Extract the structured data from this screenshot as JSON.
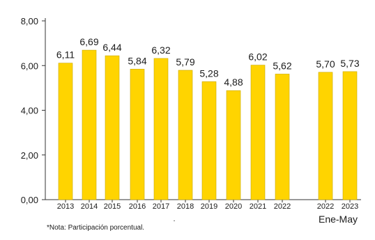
{
  "chart_data": {
    "type": "bar",
    "title": "",
    "xlabel": "",
    "ylabel": "",
    "ylim": [
      0,
      8
    ],
    "yticks": [
      "0,00",
      "2,00",
      "4,00",
      "6,00",
      "8,00"
    ],
    "grid": false,
    "legend": "none",
    "bar_color": "#FFD400",
    "bar_stroke": "#C9A800",
    "categories": [
      "2013",
      "2014",
      "2015",
      "2016",
      "2017",
      "2018",
      "2019",
      "2020",
      "2021",
      "2022",
      "2022",
      "2023"
    ],
    "values": [
      6.11,
      6.69,
      6.44,
      5.84,
      6.32,
      5.79,
      5.28,
      4.88,
      6.02,
      5.62,
      5.7,
      5.73
    ],
    "data_labels": [
      "6,11",
      "6,69",
      "6,44",
      "5,84",
      "6,32",
      "5,79",
      "5,28",
      "4,88",
      "6,02",
      "5,62",
      "5,70",
      "5,73"
    ],
    "group_label": "Ene-May",
    "separator": "."
  },
  "note": "*Nota: Participación porcentual."
}
